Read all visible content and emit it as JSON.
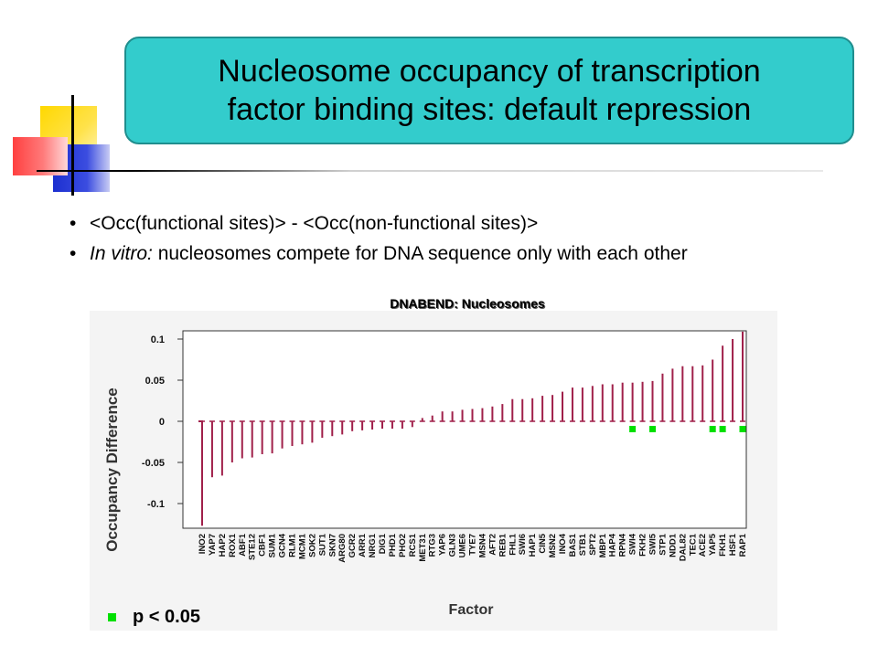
{
  "slide": {
    "title_line1": "Nucleosome occupancy of transcription",
    "title_line2": "factor binding sites: default repression",
    "bullets": [
      {
        "marker": "•",
        "prefix": "",
        "text": "<Occ(functional sites)> - <Occ(non-functional sites)>"
      },
      {
        "marker": "•",
        "prefix": "In vitro:",
        "text": " nucleosomes compete for DNA sequence only with each other"
      }
    ]
  },
  "chart_data": {
    "type": "bar",
    "title": "DNABEND: Nucleosomes",
    "xlabel": "Factor",
    "ylabel": "Occupancy Difference",
    "ylim": [
      -0.13,
      0.11
    ],
    "yticks": [
      0.1,
      0.05,
      0,
      -0.05,
      -0.1
    ],
    "ytick_labels": [
      "0.1",
      "0.05",
      "0",
      "-0.05",
      "-0.1"
    ],
    "bar_color": "#a0204a",
    "marker_color": "#00e000",
    "categories": [
      "INO2",
      "YAP7",
      "HAP2",
      "ROX1",
      "ABF1",
      "STE12",
      "CBF1",
      "SUM1",
      "GCN4",
      "RLM1",
      "MCM1",
      "SOK2",
      "SUT1",
      "SKN7",
      "ARG80",
      "GCR2",
      "ARR1",
      "NRG1",
      "DIG1",
      "PHD1",
      "PHO2",
      "RCS1",
      "MET31",
      "RTG3",
      "YAP6",
      "GLN3",
      "UME6",
      "TYE7",
      "MSN4",
      "AFT2",
      "REB1",
      "FHL1",
      "SWI6",
      "HAP1",
      "CIN5",
      "MSN2",
      "INO4",
      "BAS1",
      "STB1",
      "SPT2",
      "MBP1",
      "HAP4",
      "RPN4",
      "SWI4",
      "FKH2",
      "SWI5",
      "STP1",
      "NDD1",
      "DAL82",
      "TEC1",
      "ACE2",
      "YAP5",
      "FKH1",
      "HSF1",
      "RAP1"
    ],
    "values": [
      -0.127,
      -0.068,
      -0.066,
      -0.05,
      -0.045,
      -0.044,
      -0.04,
      -0.039,
      -0.033,
      -0.03,
      -0.028,
      -0.026,
      -0.02,
      -0.018,
      -0.016,
      -0.012,
      -0.011,
      -0.01,
      -0.009,
      -0.009,
      -0.009,
      -0.007,
      0.004,
      0.007,
      0.012,
      0.012,
      0.014,
      0.015,
      0.016,
      0.018,
      0.021,
      0.027,
      0.027,
      0.028,
      0.031,
      0.032,
      0.036,
      0.041,
      0.041,
      0.043,
      0.045,
      0.045,
      0.047,
      0.047,
      0.048,
      0.049,
      0.058,
      0.064,
      0.067,
      0.067,
      0.068,
      0.075,
      0.092,
      0.1,
      0.109
    ],
    "significant": [
      "SWI4",
      "SWI5",
      "YAP5",
      "FKH1",
      "RAP1"
    ],
    "legend": [
      {
        "label": "p < 0.05"
      }
    ]
  }
}
